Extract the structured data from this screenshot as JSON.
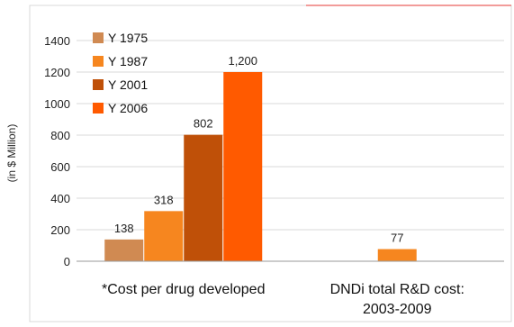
{
  "chart_data": {
    "type": "bar",
    "ylabel": "(in $ Million)",
    "ylim": [
      0,
      1400
    ],
    "yticks": [
      0,
      200,
      400,
      600,
      800,
      1000,
      1200,
      1400
    ],
    "grid": true,
    "legend_position": "top-left",
    "categories": [
      {
        "lines": [
          "*Cost per drug developed"
        ]
      },
      {
        "lines": [
          "DNDi total R&D cost:",
          "2003-2009"
        ]
      }
    ],
    "series": [
      {
        "name": "Y 1975",
        "color": "#d08a52",
        "values": [
          138,
          null
        ],
        "labels": [
          "138",
          ""
        ]
      },
      {
        "name": "Y 1987",
        "color": "#f6861f",
        "values": [
          318,
          77
        ],
        "labels": [
          "318",
          "77"
        ]
      },
      {
        "name": "Y 2001",
        "color": "#bf5008",
        "values": [
          802,
          null
        ],
        "labels": [
          "802",
          ""
        ]
      },
      {
        "name": "Y 2006",
        "color": "#ff5a00",
        "values": [
          1200,
          null
        ],
        "labels": [
          "1,200",
          ""
        ]
      }
    ]
  }
}
